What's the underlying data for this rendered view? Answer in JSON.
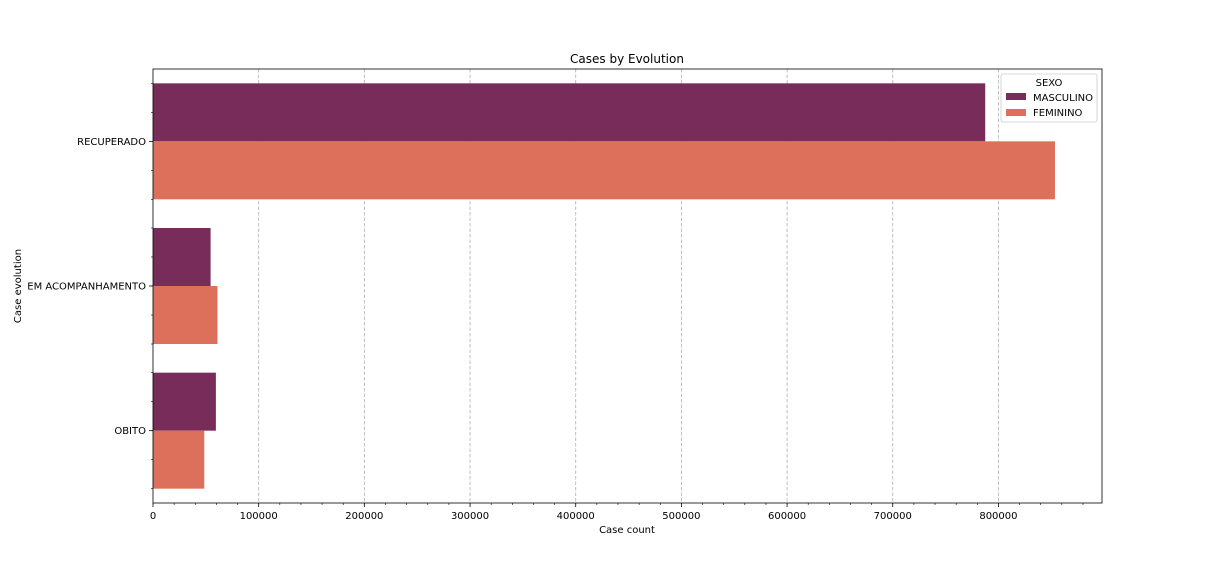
{
  "chart_data": {
    "type": "bar",
    "orientation": "horizontal",
    "title": "Cases by Evolution",
    "xlabel": "Case count",
    "ylabel": "Case evolution",
    "categories": [
      "RECUPERADO",
      "EM ACOMPANHAMENTO",
      "OBITO"
    ],
    "series": [
      {
        "name": "MASCULINO",
        "color": "#782c59",
        "values": [
          787500,
          54500,
          59500
        ]
      },
      {
        "name": "FEMININO",
        "color": "#dc705a",
        "values": [
          853500,
          61000,
          48500
        ]
      }
    ],
    "xlim": [
      0,
      898000
    ],
    "xticks": [
      0,
      100000,
      200000,
      300000,
      400000,
      500000,
      600000,
      700000,
      800000
    ],
    "xtick_labels": [
      "0",
      "100000",
      "200000",
      "300000",
      "400000",
      "500000",
      "600000",
      "700000",
      "800000"
    ],
    "grid": "x",
    "legend": {
      "title": "SEXO",
      "position": "top-right"
    }
  }
}
